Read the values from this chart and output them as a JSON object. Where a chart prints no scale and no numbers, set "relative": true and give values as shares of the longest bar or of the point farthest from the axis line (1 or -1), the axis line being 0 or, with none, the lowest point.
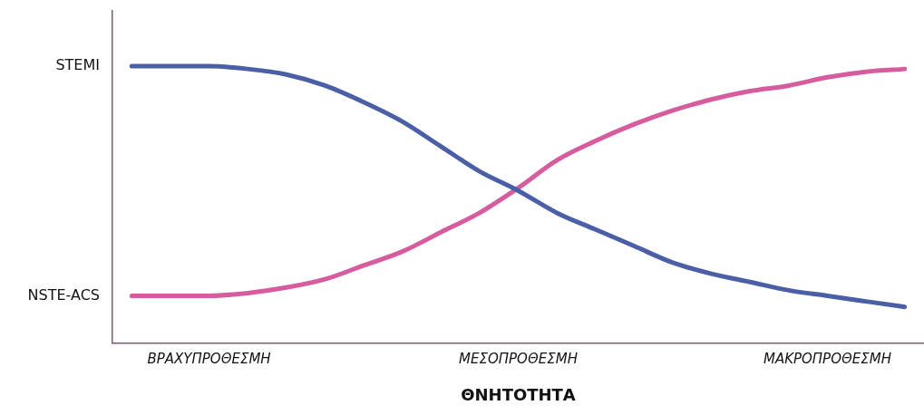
{
  "chart_data": {
    "type": "line",
    "xlabel": "ΘΝΗΤΟΤΗΤΑ",
    "relative": true,
    "categories": [
      null,
      null,
      "ΒΡΑΧΥΠΡΟΘΕΣΜΗ",
      null,
      null,
      null,
      null,
      null,
      null,
      null,
      "ΜΕΣΟΠΡΟΘΕΣΜΗ",
      null,
      null,
      null,
      null,
      null,
      null,
      null,
      "ΜΑΚΡΟΠΡΟΘΕΣΜΗ",
      null,
      null
    ],
    "annotations": [
      "STEMI",
      "NSTE-ACS"
    ],
    "grid": false,
    "legend": false,
    "marker": "none",
    "line_style": "solid",
    "series": [
      {
        "color": "#4a5fa6",
        "values": [
          1.0,
          1.0,
          1.0,
          0.99,
          0.97,
          0.93,
          0.87,
          0.8,
          0.71,
          0.62,
          0.55,
          0.47,
          0.41,
          0.35,
          0.29,
          0.25,
          0.22,
          0.19,
          0.17,
          0.15,
          0.13
        ]
      },
      {
        "color": "#d65c9f",
        "values": [
          0.17,
          0.17,
          0.17,
          0.18,
          0.2,
          0.23,
          0.28,
          0.33,
          0.4,
          0.47,
          0.56,
          0.66,
          0.73,
          0.79,
          0.84,
          0.88,
          0.91,
          0.93,
          0.96,
          0.98,
          0.99
        ]
      }
    ]
  }
}
